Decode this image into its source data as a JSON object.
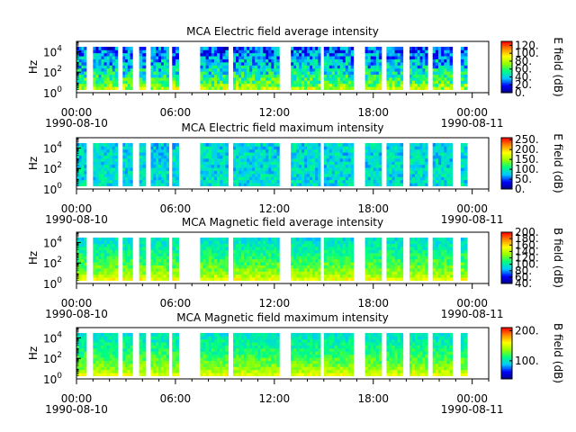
{
  "chart_data": [
    {
      "type": "heatmap",
      "title": "MCA  Electric field average intensity",
      "ylabel": "Hz",
      "yscale": "log",
      "ylim": [
        1,
        100000
      ],
      "yticks": [
        {
          "exp": "0",
          "value": 1
        },
        {
          "exp": "2",
          "value": 100
        },
        {
          "exp": "4",
          "value": 10000
        }
      ],
      "xlim": [
        0,
        25
      ],
      "xticks": [
        {
          "hour": 0,
          "label": "00:00"
        },
        {
          "hour": 6,
          "label": "06:00"
        },
        {
          "hour": 12,
          "label": "12:00"
        },
        {
          "hour": 18,
          "label": "18:00"
        },
        {
          "hour": 24,
          "label": "00:00"
        }
      ],
      "date_start": "1990-08-10",
      "date_end": "1990-08-11",
      "colorbar": {
        "label": "E field (dB)",
        "range": [
          0,
          130
        ],
        "ticks": [
          "0.",
          "20.",
          "40.",
          "60.",
          "80.",
          "100.",
          "120."
        ],
        "tick_values": [
          0,
          20,
          40,
          60,
          80,
          100,
          120
        ]
      },
      "coverage_hours": [
        [
          0,
          0.6
        ],
        [
          1,
          2.5
        ],
        [
          2.8,
          3.4
        ],
        [
          3.8,
          4.2
        ],
        [
          4.5,
          5.6
        ],
        [
          5.8,
          6.2
        ],
        [
          7.5,
          9.2
        ],
        [
          9.5,
          12.3
        ],
        [
          13,
          14.8
        ],
        [
          15,
          16.8
        ],
        [
          17.5,
          18.5
        ],
        [
          18.8,
          19.8
        ],
        [
          20.2,
          21.3
        ],
        [
          21.6,
          22.8
        ],
        [
          23.3,
          23.7
        ]
      ],
      "spectrum": {
        "low_db": 80,
        "high_db": 25,
        "variability_db": 20
      }
    },
    {
      "type": "heatmap",
      "title": "MCA  Electric field maximum intensity",
      "ylabel": "Hz",
      "yscale": "log",
      "ylim": [
        1,
        100000
      ],
      "yticks": [
        {
          "exp": "0",
          "value": 1
        },
        {
          "exp": "2",
          "value": 100
        },
        {
          "exp": "4",
          "value": 10000
        }
      ],
      "xlim": [
        0,
        25
      ],
      "xticks": [
        {
          "hour": 0,
          "label": "00:00"
        },
        {
          "hour": 6,
          "label": "06:00"
        },
        {
          "hour": 12,
          "label": "12:00"
        },
        {
          "hour": 18,
          "label": "18:00"
        },
        {
          "hour": 24,
          "label": "00:00"
        }
      ],
      "date_start": "1990-08-10",
      "date_end": "1990-08-11",
      "colorbar": {
        "label": "E field (dB)",
        "range": [
          0,
          260
        ],
        "ticks": [
          "0.",
          "50.",
          "100.",
          "150.",
          "200.",
          "250."
        ],
        "tick_values": [
          0,
          50,
          100,
          150,
          200,
          250
        ]
      },
      "coverage_hours": [
        [
          0,
          0.6
        ],
        [
          1,
          2.5
        ],
        [
          2.8,
          3.4
        ],
        [
          3.8,
          4.2
        ],
        [
          4.5,
          5.6
        ],
        [
          5.8,
          6.2
        ],
        [
          7.5,
          9.2
        ],
        [
          9.5,
          12.3
        ],
        [
          13,
          14.8
        ],
        [
          15,
          16.8
        ],
        [
          17.5,
          18.5
        ],
        [
          18.8,
          19.8
        ],
        [
          20.2,
          21.3
        ],
        [
          21.6,
          22.8
        ],
        [
          23.3,
          23.7
        ]
      ],
      "spectrum": {
        "low_db": 90,
        "high_db": 85,
        "variability_db": 25
      }
    },
    {
      "type": "heatmap",
      "title": "MCA  Magnetic field average intensity",
      "ylabel": "Hz",
      "yscale": "log",
      "ylim": [
        1,
        100000
      ],
      "yticks": [
        {
          "exp": "0",
          "value": 1
        },
        {
          "exp": "2",
          "value": 100
        },
        {
          "exp": "4",
          "value": 10000
        }
      ],
      "xlim": [
        0,
        25
      ],
      "xticks": [
        {
          "hour": 0,
          "label": "00:00"
        },
        {
          "hour": 6,
          "label": "06:00"
        },
        {
          "hour": 12,
          "label": "12:00"
        },
        {
          "hour": 18,
          "label": "18:00"
        },
        {
          "hour": 24,
          "label": "00:00"
        }
      ],
      "date_start": "1990-08-10",
      "date_end": "1990-08-11",
      "colorbar": {
        "label": "B field (dB)",
        "range": [
          40,
          200
        ],
        "ticks": [
          "40.",
          "60.",
          "80.",
          "100.",
          "120.",
          "140.",
          "160.",
          "180.",
          "200."
        ],
        "tick_values": [
          40,
          60,
          80,
          100,
          120,
          140,
          160,
          180,
          200
        ]
      },
      "coverage_hours": [
        [
          0,
          0.6
        ],
        [
          1,
          2.5
        ],
        [
          2.8,
          3.4
        ],
        [
          3.8,
          4.2
        ],
        [
          4.5,
          5.6
        ],
        [
          5.8,
          6.2
        ],
        [
          7.5,
          9.2
        ],
        [
          9.5,
          12.3
        ],
        [
          13,
          14.8
        ],
        [
          15,
          16.8
        ],
        [
          17.5,
          18.5
        ],
        [
          18.8,
          19.8
        ],
        [
          20.2,
          21.3
        ],
        [
          21.6,
          22.8
        ],
        [
          23.3,
          23.7
        ]
      ],
      "spectrum": {
        "low_db": 150,
        "high_db": 95,
        "variability_db": 12
      }
    },
    {
      "type": "heatmap",
      "title": "MCA  Magnetic field maximum intensity",
      "ylabel": "Hz",
      "yscale": "log",
      "ylim": [
        1,
        100000
      ],
      "yticks": [
        {
          "exp": "0",
          "value": 1
        },
        {
          "exp": "2",
          "value": 100
        },
        {
          "exp": "4",
          "value": 10000
        }
      ],
      "xlim": [
        0,
        25
      ],
      "xticks": [
        {
          "hour": 0,
          "label": "00:00"
        },
        {
          "hour": 6,
          "label": "06:00"
        },
        {
          "hour": 12,
          "label": "12:00"
        },
        {
          "hour": 18,
          "label": "18:00"
        },
        {
          "hour": 24,
          "label": "00:00"
        }
      ],
      "date_start": "1990-08-10",
      "date_end": "1990-08-11",
      "colorbar": {
        "label": "B field (dB)",
        "range": [
          40,
          210
        ],
        "ticks": [
          "100.",
          "200."
        ],
        "tick_values": [
          100,
          200
        ]
      },
      "coverage_hours": [
        [
          0,
          0.6
        ],
        [
          1,
          2.5
        ],
        [
          2.8,
          3.4
        ],
        [
          3.8,
          4.2
        ],
        [
          4.5,
          5.6
        ],
        [
          5.8,
          6.2
        ],
        [
          7.5,
          9.2
        ],
        [
          9.5,
          12.3
        ],
        [
          13,
          14.8
        ],
        [
          15,
          16.8
        ],
        [
          17.5,
          18.5
        ],
        [
          18.8,
          19.8
        ],
        [
          20.2,
          21.3
        ],
        [
          21.6,
          22.8
        ],
        [
          23.3,
          23.7
        ]
      ],
      "spectrum": {
        "low_db": 155,
        "high_db": 100,
        "variability_db": 12
      }
    }
  ]
}
